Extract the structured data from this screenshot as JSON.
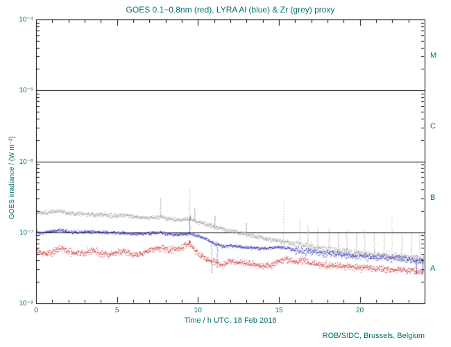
{
  "colors": {
    "text": "#007070",
    "frame": "#000000",
    "background": "#ffffff",
    "goes_red": "#cc3333",
    "lyra_al_blue": "#3333bb",
    "lyra_zr_grey": "#a0a0a0"
  },
  "footer": {
    "credit": "ROB/SIDC, Brussels, Belgium"
  },
  "chart_data": {
    "type": "scatter",
    "title": "GOES 0.1−0.8nm (red), LYRA Al (blue) & Zr (grey) proxy",
    "xlabel": "Time / h UTC, 18 Feb 2018",
    "ylabel": "GOES irradiance / (W m⁻²)",
    "xlim": [
      0,
      24
    ],
    "ylim": [
      1e-08,
      0.0001
    ],
    "ylog": true,
    "grid": false,
    "x_ticks": [
      {
        "value": 0,
        "label": "0"
      },
      {
        "value": 5,
        "label": "5"
      },
      {
        "value": 10,
        "label": "10"
      },
      {
        "value": 15,
        "label": "15"
      },
      {
        "value": 20,
        "label": "20"
      }
    ],
    "y_ticks": [
      {
        "value": 1e-08,
        "label": "10⁻⁸"
      },
      {
        "value": 1e-07,
        "label": "10⁻⁷"
      },
      {
        "value": 1e-06,
        "label": "10⁻⁶"
      },
      {
        "value": 1e-05,
        "label": "10⁻⁵"
      },
      {
        "value": 0.0001,
        "label": "10⁻⁴"
      }
    ],
    "flare_class_lines": [
      1e-07,
      1e-06,
      1e-05
    ],
    "flare_class_labels": [
      {
        "label": "M",
        "value": 3.16e-05
      },
      {
        "label": "C",
        "value": 3.16e-06
      },
      {
        "label": "B",
        "value": 3.16e-07
      },
      {
        "label": "A",
        "value": 3.16e-08
      }
    ],
    "series": [
      {
        "name": "GOES 0.1−0.8nm",
        "color": "#cc3333",
        "sigma": 0.045,
        "anchors": [
          [
            0,
            5.4e-08
          ],
          [
            0.5,
            4.9e-08
          ],
          [
            1,
            5.2e-08
          ],
          [
            1.5,
            6e-08
          ],
          [
            2,
            5.4e-08
          ],
          [
            2.5,
            5e-08
          ],
          [
            3,
            5.1e-08
          ],
          [
            3.5,
            5.6e-08
          ],
          [
            4,
            5e-08
          ],
          [
            4.5,
            4.8e-08
          ],
          [
            5,
            5.2e-08
          ],
          [
            5.5,
            5.4e-08
          ],
          [
            6,
            4.8e-08
          ],
          [
            6.5,
            5e-08
          ],
          [
            7,
            5.6e-08
          ],
          [
            7.5,
            5.9e-08
          ],
          [
            7.7,
            6.2e-08
          ],
          [
            8,
            5.6e-08
          ],
          [
            8.5,
            5.8e-08
          ],
          [
            9,
            6e-08
          ],
          [
            9.3,
            6.5e-08
          ],
          [
            9.5,
            7e-08
          ],
          [
            9.8,
            5.6e-08
          ],
          [
            10,
            5e-08
          ],
          [
            10.5,
            4.2e-08
          ],
          [
            11,
            3.8e-08
          ],
          [
            11.5,
            3.5e-08
          ],
          [
            12,
            3.9e-08
          ],
          [
            12.5,
            3.8e-08
          ],
          [
            13,
            3.7e-08
          ],
          [
            13.5,
            3.5e-08
          ],
          [
            14,
            3.3e-08
          ],
          [
            14.5,
            3.4e-08
          ],
          [
            15,
            3.9e-08
          ],
          [
            15.3,
            4.2e-08
          ],
          [
            15.5,
            4.1e-08
          ],
          [
            16,
            3.8e-08
          ],
          [
            16.5,
            4e-08
          ],
          [
            17,
            3.7e-08
          ],
          [
            17.5,
            3.5e-08
          ],
          [
            18,
            3.4e-08
          ],
          [
            18.5,
            3.35e-08
          ],
          [
            19,
            3.3e-08
          ],
          [
            19.5,
            3.25e-08
          ],
          [
            20,
            3.2e-08
          ],
          [
            20.5,
            3.15e-08
          ],
          [
            21,
            3.1e-08
          ],
          [
            21.5,
            3.05e-08
          ],
          [
            22,
            3e-08
          ],
          [
            22.5,
            2.95e-08
          ],
          [
            23,
            2.9e-08
          ],
          [
            23.5,
            2.85e-08
          ],
          [
            24,
            2.8e-08
          ]
        ],
        "spikes": [
          [
            9.5,
            7.5e-08
          ]
        ]
      },
      {
        "name": "LYRA Al proxy",
        "color": "#3333bb",
        "sigma": 0.022,
        "sigma_late": 0.05,
        "late_start": 16,
        "anchors": [
          [
            0,
            1e-07
          ],
          [
            0.5,
            9.8e-08
          ],
          [
            1,
            1.04e-07
          ],
          [
            1.5,
            1.07e-07
          ],
          [
            2,
            1.02e-07
          ],
          [
            2.5,
            1e-07
          ],
          [
            3,
            1e-07
          ],
          [
            3.5,
            1.01e-07
          ],
          [
            4,
            1e-07
          ],
          [
            4.5,
            9.9e-08
          ],
          [
            5,
            9.8e-08
          ],
          [
            5.5,
            9.7e-08
          ],
          [
            6,
            9.4e-08
          ],
          [
            6.5,
            9.5e-08
          ],
          [
            7,
            9.6e-08
          ],
          [
            7.5,
            9.8e-08
          ],
          [
            7.7,
            1e-07
          ],
          [
            8,
            9.5e-08
          ],
          [
            8.5,
            9.3e-08
          ],
          [
            9,
            9.2e-08
          ],
          [
            9.5,
            9.6e-08
          ],
          [
            10,
            8.8e-08
          ],
          [
            10.5,
            8e-08
          ],
          [
            11,
            7e-08
          ],
          [
            11.5,
            6.3e-08
          ],
          [
            12,
            6.5e-08
          ],
          [
            12.5,
            6.3e-08
          ],
          [
            13,
            6.1e-08
          ],
          [
            13.5,
            6e-08
          ],
          [
            14,
            5.9e-08
          ],
          [
            14.5,
            6e-08
          ],
          [
            15,
            6.2e-08
          ],
          [
            15.5,
            6e-08
          ],
          [
            16,
            5.6e-08
          ],
          [
            16.5,
            5.4e-08
          ],
          [
            17,
            5.3e-08
          ],
          [
            17.5,
            5.1e-08
          ],
          [
            18,
            5e-08
          ],
          [
            18.5,
            4.9e-08
          ],
          [
            19,
            4.8e-08
          ],
          [
            19.5,
            4.7e-08
          ],
          [
            20,
            4.6e-08
          ],
          [
            20.5,
            4.5e-08
          ],
          [
            21,
            4.45e-08
          ],
          [
            21.5,
            4.4e-08
          ],
          [
            22,
            4.3e-08
          ],
          [
            22.5,
            4.25e-08
          ],
          [
            23,
            4.2e-08
          ],
          [
            23.5,
            4.1e-08
          ],
          [
            24,
            4e-08
          ]
        ],
        "spikes": [
          [
            9.5,
            1.7e-07
          ],
          [
            10.85,
            2.7e-08
          ],
          [
            11.2,
            3.2e-08
          ],
          [
            23.5,
            2.6e-08
          ],
          [
            23.9,
            2.7e-08
          ]
        ]
      },
      {
        "name": "LYRA Zr proxy",
        "color": "#a0a0a0",
        "sigma": 0.03,
        "sigma_late": 0.06,
        "late_start": 16,
        "anchors": [
          [
            0,
            1.9e-07
          ],
          [
            0.5,
            1.88e-07
          ],
          [
            1,
            1.95e-07
          ],
          [
            1.5,
            2e-07
          ],
          [
            2,
            1.86e-07
          ],
          [
            2.5,
            1.84e-07
          ],
          [
            3,
            1.8e-07
          ],
          [
            3.5,
            1.78e-07
          ],
          [
            4,
            1.76e-07
          ],
          [
            4.5,
            1.72e-07
          ],
          [
            5,
            1.7e-07
          ],
          [
            5.5,
            1.74e-07
          ],
          [
            6,
            1.66e-07
          ],
          [
            6.5,
            1.62e-07
          ],
          [
            7,
            1.6e-07
          ],
          [
            7.5,
            1.62e-07
          ],
          [
            7.7,
            1.68e-07
          ],
          [
            8,
            1.56e-07
          ],
          [
            8.5,
            1.52e-07
          ],
          [
            9,
            1.5e-07
          ],
          [
            9.5,
            1.54e-07
          ],
          [
            10,
            1.4e-07
          ],
          [
            10.5,
            1.3e-07
          ],
          [
            11,
            1.2e-07
          ],
          [
            11.5,
            1.12e-07
          ],
          [
            12,
            1.05e-07
          ],
          [
            12.5,
            1e-07
          ],
          [
            13,
            9.3e-08
          ],
          [
            13.5,
            8.8e-08
          ],
          [
            14,
            8.3e-08
          ],
          [
            14.5,
            7.9e-08
          ],
          [
            15,
            7.5e-08
          ],
          [
            15.5,
            7.2e-08
          ],
          [
            16,
            6.8e-08
          ],
          [
            16.5,
            6.5e-08
          ],
          [
            17,
            6.2e-08
          ],
          [
            17.5,
            5.9e-08
          ],
          [
            18,
            5.7e-08
          ],
          [
            18.5,
            5.5e-08
          ],
          [
            19,
            5.3e-08
          ],
          [
            19.5,
            5.1e-08
          ],
          [
            20,
            4.95e-08
          ],
          [
            20.5,
            4.85e-08
          ],
          [
            21,
            4.75e-08
          ],
          [
            21.5,
            4.65e-08
          ],
          [
            22,
            4.55e-08
          ],
          [
            22.5,
            4.45e-08
          ],
          [
            23,
            4.35e-08
          ],
          [
            23.5,
            4.25e-08
          ],
          [
            24,
            4.15e-08
          ]
        ],
        "spikes": [
          [
            7.7,
            3e-07
          ],
          [
            9.5,
            4e-07
          ],
          [
            9.8,
            2.2e-07
          ],
          [
            11.05,
            1.7e-07
          ],
          [
            13.0,
            1.35e-07
          ],
          [
            15.3,
            2.6e-07
          ],
          [
            16.3,
            1.5e-07
          ],
          [
            16.8,
            1.25e-07
          ],
          [
            17.4,
            1.15e-07
          ],
          [
            18.1,
            1.1e-07
          ],
          [
            18.7,
            1e-07
          ],
          [
            19.2,
            1.05e-07
          ],
          [
            19.8,
            9.5e-08
          ],
          [
            20.3,
            1.05e-07
          ],
          [
            20.9,
            9.5e-08
          ],
          [
            21.5,
            1e-07
          ],
          [
            22.0,
            1.6e-07
          ],
          [
            22.6,
            9e-08
          ],
          [
            23.2,
            9.5e-08
          ],
          [
            23.7,
            9e-08
          ]
        ]
      }
    ]
  }
}
